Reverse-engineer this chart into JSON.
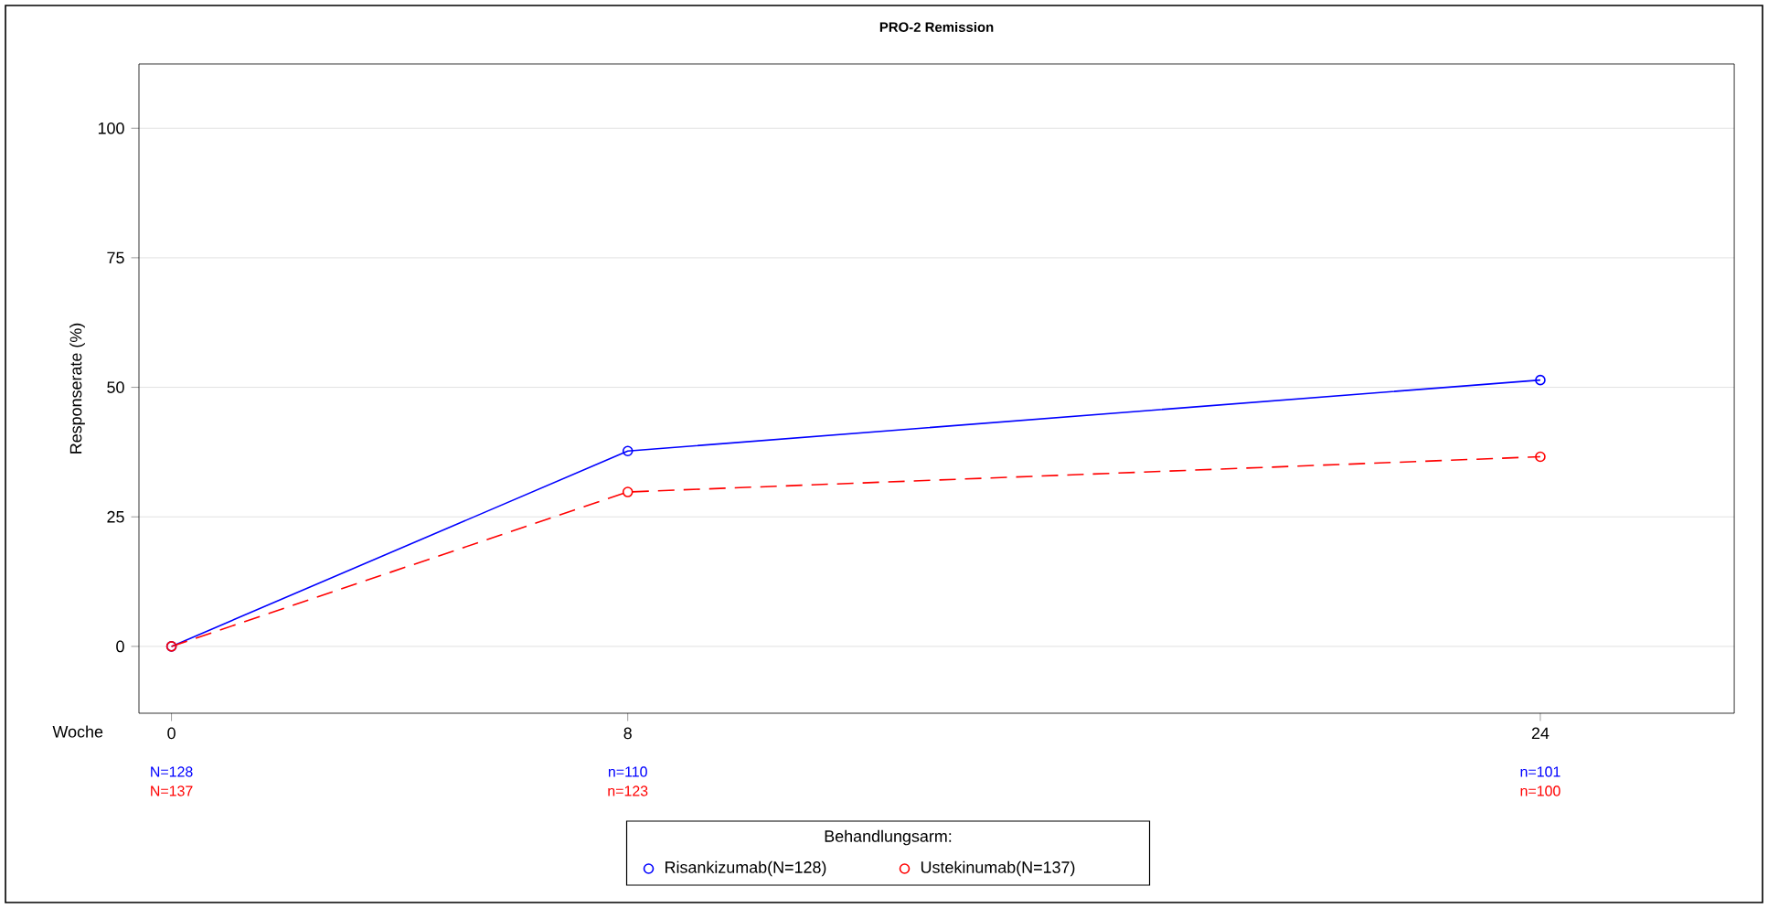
{
  "chart_data": {
    "type": "line",
    "title": "PRO-2 Remission",
    "xlabel": "Woche",
    "ylabel": "Responserate (%)",
    "legend_title": "Behandlungsarm:",
    "x": [
      0,
      8,
      24
    ],
    "series": [
      {
        "name": "Risankizumab(N=128)",
        "color": "#0000ff",
        "values": [
          0,
          37.7,
          51.4
        ],
        "line_style": "solid"
      },
      {
        "name": "Ustekinumab(N=137)",
        "color": "#ff0000",
        "values": [
          0,
          29.8,
          36.6
        ],
        "line_style": "dashed"
      }
    ],
    "xlim": [
      -0.57,
      27.4
    ],
    "ylim": [
      -12.9,
      112.4
    ],
    "xticks": [
      0,
      8,
      24
    ],
    "yticks": [
      0,
      25,
      50,
      75,
      100
    ],
    "annotations": [
      "N=128",
      "N=137",
      "n=110",
      "n=123",
      "n=101",
      "n=100"
    ],
    "grid": "y",
    "legend": "bottom",
    "marker": "circle"
  }
}
